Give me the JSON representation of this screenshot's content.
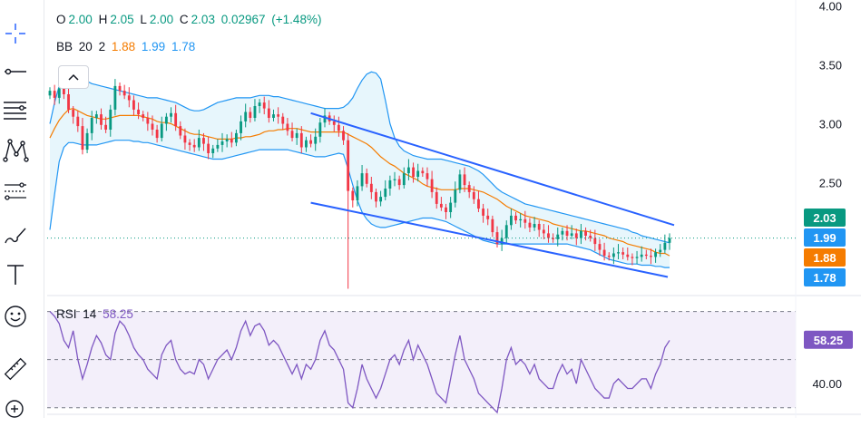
{
  "ohlc": {
    "open_label": "O",
    "open": "2.00",
    "high_label": "H",
    "high": "2.05",
    "low_label": "L",
    "low": "2.00",
    "close_label": "C",
    "close": "2.03",
    "change": "0.02967",
    "change_pct": "(+1.48%)"
  },
  "bb": {
    "name": "BB",
    "length": "20",
    "mult": "2",
    "basis": "1.88",
    "upper": "1.99",
    "lower": "1.78"
  },
  "rsi": {
    "name": "RSI",
    "length": "14",
    "value": "58.25"
  },
  "tools": [
    "crosshair-icon",
    "trend-line-icon",
    "fib-retracement-icon",
    "pattern-icon",
    "projection-icon",
    "brush-icon",
    "text-icon",
    "emoji-icon",
    "ruler-icon",
    "zoom-in-icon"
  ],
  "colors": {
    "up": "#089981",
    "down": "#f23645",
    "basis": "#f57c00",
    "band": "#2196f3",
    "band_fill": "#e3f4fb",
    "channel": "#2962ff",
    "rsi": "#7e57c2",
    "rsi_fill": "#f3effa"
  },
  "chart_data": [
    {
      "type": "candlestick",
      "price_axis": {
        "ticks": [
          4.0,
          3.5,
          3.0,
          2.5
        ],
        "range": [
          1.55,
          4.05
        ]
      },
      "price_tags": [
        {
          "value": 2.03,
          "label": "2.03",
          "color": "#089981"
        },
        {
          "value": 1.99,
          "label": "1.99",
          "color": "#2196f3"
        },
        {
          "value": 1.88,
          "label": "1.88",
          "color": "#f57c00"
        },
        {
          "value": 1.78,
          "label": "1.78",
          "color": "#2196f3"
        }
      ],
      "last_price_line": 2.03,
      "close": [
        3.28,
        3.22,
        3.3,
        3.25,
        3.12,
        3.06,
        2.98,
        2.78,
        2.92,
        3.05,
        3.08,
        2.99,
        2.95,
        3.12,
        3.32,
        3.28,
        3.24,
        3.2,
        3.12,
        3.08,
        3.05,
        3.0,
        2.95,
        2.88,
        3.0,
        3.06,
        3.09,
        2.98,
        2.9,
        2.84,
        2.82,
        2.8,
        2.88,
        2.83,
        2.75,
        2.79,
        2.82,
        2.85,
        2.87,
        2.84,
        2.92,
        3.02,
        3.1,
        3.05,
        3.15,
        3.18,
        3.13,
        3.05,
        3.08,
        3.06,
        3.0,
        2.94,
        2.88,
        2.92,
        2.8,
        2.86,
        2.83,
        2.89,
        3.01,
        3.07,
        3.02,
        2.99,
        2.94,
        2.86,
        2.43,
        2.35,
        2.47,
        2.58,
        2.49,
        2.42,
        2.34,
        2.38,
        2.45,
        2.52,
        2.53,
        2.48,
        2.58,
        2.63,
        2.55,
        2.6,
        2.58,
        2.53,
        2.42,
        2.32,
        2.29,
        2.25,
        2.33,
        2.44,
        2.57,
        2.48,
        2.42,
        2.36,
        2.28,
        2.22,
        2.19,
        2.08,
        1.98,
        2.03,
        2.14,
        2.22,
        2.18,
        2.19,
        2.16,
        2.12,
        2.15,
        2.1,
        2.07,
        2.03,
        2.02,
        2.06,
        2.09,
        2.05,
        2.07,
        2.03,
        2.09,
        2.05,
        2.03,
        1.98,
        1.93,
        1.88,
        1.87,
        1.9,
        1.91,
        1.89,
        1.87,
        1.86,
        1.87,
        1.89,
        1.88,
        1.87,
        1.91,
        1.93,
        1.99,
        2.03
      ],
      "basis": [
        2.88,
        2.96,
        3.03,
        3.08,
        3.12,
        3.13,
        3.11,
        3.09,
        3.07,
        3.06,
        3.05,
        3.04,
        3.04,
        3.05,
        3.06,
        3.07,
        3.07,
        3.07,
        3.07,
        3.07,
        3.06,
        3.05,
        3.04,
        3.02,
        3.01,
        3.01,
        3.0,
        2.98,
        2.96,
        2.94,
        2.92,
        2.91,
        2.91,
        2.9,
        2.89,
        2.88,
        2.87,
        2.87,
        2.87,
        2.87,
        2.88,
        2.88,
        2.89,
        2.89,
        2.9,
        2.91,
        2.93,
        2.94,
        2.94,
        2.95,
        2.95,
        2.96,
        2.96,
        2.96,
        2.95,
        2.94,
        2.93,
        2.93,
        2.93,
        2.93,
        2.93,
        2.93,
        2.93,
        2.93,
        2.91,
        2.89,
        2.87,
        2.85,
        2.83,
        2.8,
        2.76,
        2.72,
        2.69,
        2.66,
        2.64,
        2.61,
        2.58,
        2.56,
        2.54,
        2.52,
        2.49,
        2.47,
        2.46,
        2.45,
        2.44,
        2.44,
        2.44,
        2.44,
        2.45,
        2.45,
        2.45,
        2.44,
        2.43,
        2.42,
        2.4,
        2.38,
        2.36,
        2.33,
        2.3,
        2.28,
        2.26,
        2.24,
        2.22,
        2.21,
        2.2,
        2.19,
        2.18,
        2.17,
        2.15,
        2.14,
        2.13,
        2.12,
        2.11,
        2.1,
        2.09,
        2.09,
        2.08,
        2.07,
        2.06,
        2.05,
        2.03,
        2.02,
        2.01,
        2.0,
        1.98,
        1.97,
        1.96,
        1.95,
        1.94,
        1.93,
        1.91,
        1.9,
        1.9,
        1.88
      ],
      "upper": [
        3.0,
        3.18,
        3.32,
        3.4,
        3.42,
        3.41,
        3.39,
        3.37,
        3.36,
        3.34,
        3.33,
        3.32,
        3.31,
        3.3,
        3.29,
        3.28,
        3.27,
        3.26,
        3.25,
        3.24,
        3.23,
        3.22,
        3.22,
        3.22,
        3.21,
        3.2,
        3.19,
        3.18,
        3.16,
        3.14,
        3.12,
        3.11,
        3.11,
        3.12,
        3.14,
        3.16,
        3.18,
        3.19,
        3.2,
        3.21,
        3.22,
        3.22,
        3.22,
        3.22,
        3.23,
        3.24,
        3.24,
        3.24,
        3.23,
        3.23,
        3.22,
        3.21,
        3.2,
        3.19,
        3.18,
        3.17,
        3.16,
        3.15,
        3.14,
        3.13,
        3.13,
        3.13,
        3.13,
        3.14,
        3.17,
        3.22,
        3.3,
        3.37,
        3.42,
        3.44,
        3.43,
        3.38,
        3.2,
        3.0,
        2.88,
        2.81,
        2.77,
        2.75,
        2.73,
        2.72,
        2.71,
        2.7,
        2.7,
        2.7,
        2.7,
        2.69,
        2.68,
        2.67,
        2.66,
        2.65,
        2.64,
        2.62,
        2.6,
        2.57,
        2.53,
        2.49,
        2.45,
        2.42,
        2.4,
        2.38,
        2.36,
        2.34,
        2.32,
        2.31,
        2.3,
        2.29,
        2.28,
        2.27,
        2.26,
        2.25,
        2.24,
        2.23,
        2.22,
        2.21,
        2.2,
        2.19,
        2.18,
        2.17,
        2.16,
        2.15,
        2.14,
        2.13,
        2.12,
        2.11,
        2.1,
        2.08,
        2.07,
        2.05,
        2.04,
        2.03,
        2.02,
        2.01,
        2.0,
        1.99
      ],
      "lower": [
        2.1,
        2.4,
        2.68,
        2.8,
        2.84,
        2.84,
        2.83,
        2.82,
        2.82,
        2.82,
        2.82,
        2.83,
        2.84,
        2.85,
        2.86,
        2.86,
        2.86,
        2.86,
        2.85,
        2.85,
        2.84,
        2.84,
        2.83,
        2.82,
        2.81,
        2.8,
        2.79,
        2.78,
        2.77,
        2.76,
        2.75,
        2.74,
        2.73,
        2.72,
        2.71,
        2.7,
        2.7,
        2.7,
        2.71,
        2.72,
        2.73,
        2.74,
        2.75,
        2.76,
        2.77,
        2.78,
        2.78,
        2.78,
        2.78,
        2.78,
        2.78,
        2.78,
        2.77,
        2.76,
        2.75,
        2.74,
        2.73,
        2.72,
        2.72,
        2.72,
        2.73,
        2.74,
        2.75,
        2.74,
        2.62,
        2.48,
        2.35,
        2.25,
        2.19,
        2.15,
        2.13,
        2.12,
        2.12,
        2.13,
        2.14,
        2.15,
        2.16,
        2.17,
        2.18,
        2.19,
        2.2,
        2.2,
        2.2,
        2.19,
        2.18,
        2.17,
        2.15,
        2.13,
        2.11,
        2.09,
        2.07,
        2.05,
        2.03,
        2.01,
        2.0,
        1.99,
        1.98,
        1.98,
        1.98,
        1.98,
        1.98,
        1.98,
        1.98,
        1.98,
        1.98,
        1.98,
        1.98,
        1.98,
        1.98,
        1.98,
        1.98,
        1.98,
        1.97,
        1.96,
        1.95,
        1.94,
        1.93,
        1.91,
        1.89,
        1.87,
        1.85,
        1.84,
        1.83,
        1.82,
        1.81,
        1.81,
        1.81,
        1.8,
        1.8,
        1.8,
        1.79,
        1.79,
        1.78,
        1.78
      ],
      "channel": {
        "upper": [
          [
            2.92,
            3.09
          ],
          [
            2.91,
            2.14
          ]
        ],
        "lower": [
          [
            2.82,
            2.33
          ],
          [
            2.85,
            1.7
          ]
        ],
        "start": 0.423,
        "end": 0.999
      }
    },
    {
      "type": "line",
      "series_name": "RSI",
      "y_ticks": [
        40.0
      ],
      "levels": [
        70,
        50,
        30
      ],
      "range": [
        28,
        74
      ],
      "value_tag": {
        "value": 58.25,
        "label": "58.25"
      },
      "values": [
        70,
        68,
        65,
        58,
        55,
        62,
        50,
        42,
        48,
        55,
        60,
        57,
        52,
        50,
        61,
        66,
        64,
        60,
        55,
        52,
        50,
        46,
        44,
        42,
        52,
        56,
        58,
        50,
        46,
        44,
        45,
        44,
        50,
        48,
        42,
        46,
        50,
        52,
        54,
        50,
        55,
        62,
        66,
        60,
        64,
        65,
        62,
        56,
        58,
        56,
        52,
        48,
        44,
        48,
        42,
        48,
        46,
        50,
        58,
        62,
        56,
        54,
        50,
        46,
        32,
        30,
        38,
        48,
        42,
        38,
        34,
        38,
        44,
        50,
        52,
        48,
        54,
        58,
        50,
        56,
        52,
        48,
        42,
        36,
        34,
        32,
        42,
        52,
        60,
        50,
        46,
        42,
        36,
        34,
        32,
        30,
        28,
        38,
        50,
        55,
        48,
        50,
        48,
        44,
        48,
        42,
        40,
        38,
        38,
        44,
        48,
        44,
        46,
        40,
        50,
        46,
        42,
        38,
        36,
        34,
        34,
        40,
        42,
        40,
        38,
        38,
        40,
        42,
        42,
        38,
        44,
        48,
        55,
        58
      ]
    }
  ]
}
